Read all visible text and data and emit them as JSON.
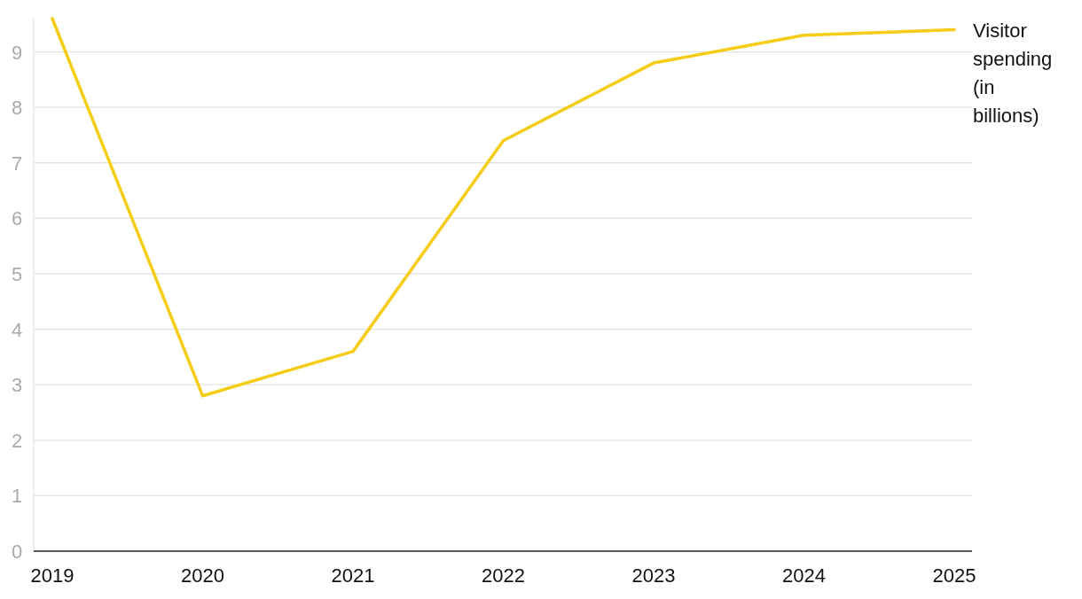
{
  "chart_data": {
    "type": "line",
    "categories": [
      "2019",
      "2020",
      "2021",
      "2022",
      "2023",
      "2024",
      "2025"
    ],
    "series": [
      {
        "name": "Visitor spending (in billions)",
        "color": "#f5cc16",
        "values": [
          9.6,
          2.8,
          3.6,
          7.4,
          8.8,
          9.3,
          9.4
        ]
      }
    ],
    "ylim": [
      0,
      9.6
    ],
    "yticks": [
      0,
      1,
      2,
      3,
      4,
      5,
      6,
      7,
      8,
      9
    ],
    "grid": "y",
    "legend": false,
    "marker": "none",
    "line_style": "solid"
  }
}
